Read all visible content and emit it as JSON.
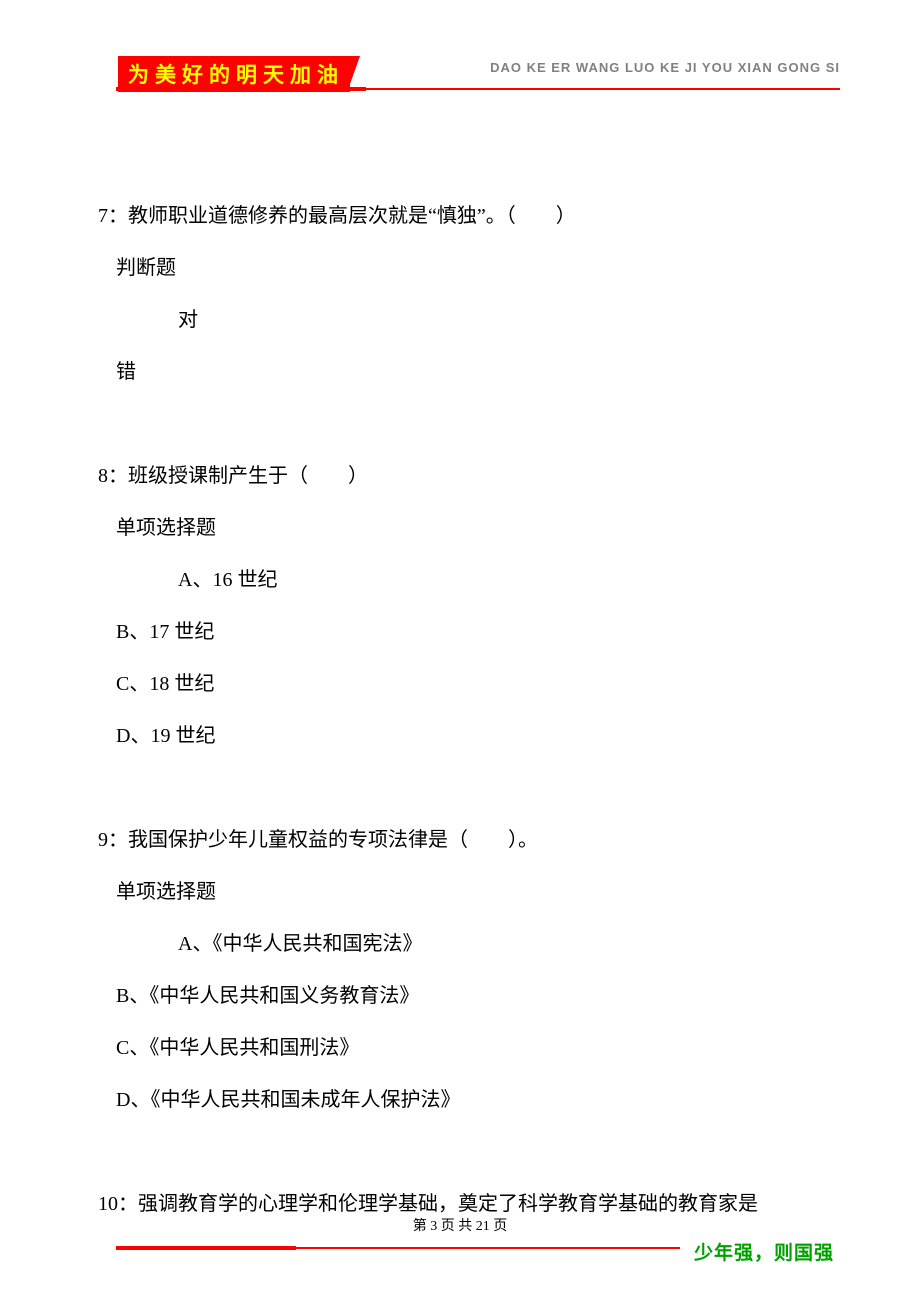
{
  "header": {
    "banner_text": "为美好的明天加油",
    "pinyin": "DAO KE ER WANG LUO KE JI YOU XIAN GONG SI",
    "line_color": "#ff0000",
    "banner_bg": "#ff0000",
    "banner_fg": "#ffff00"
  },
  "q7": {
    "text": "7：教师职业道德修养的最高层次就是“慎独”。（　　）",
    "type": "判断题",
    "opt_true": "对",
    "opt_false": "错"
  },
  "q8": {
    "text": "8：班级授课制产生于（　　）",
    "type": "单项选择题",
    "a": "A、16 世纪",
    "b": "B、17 世纪",
    "c": "C、18 世纪",
    "d": "D、19 世纪"
  },
  "q9": {
    "text": "9：我国保护少年儿童权益的专项法律是（　　）。",
    "type": "单项选择题",
    "a": "A、《中华人民共和国宪法》",
    "b": "B、《中华人民共和国义务教育法》",
    "c": "C、《中华人民共和国刑法》",
    "d": "D、《中华人民共和国未成年人保护法》"
  },
  "q10": {
    "text": "10：强调教育学的心理学和伦理学基础，奠定了科学教育学基础的教育家是"
  },
  "footer": {
    "page_label_prefix": "第 ",
    "page_current": "3",
    "page_label_mid": " 页 共 ",
    "page_total": "21",
    "page_label_suffix": " 页",
    "slogan": "少年强，则国强",
    "slogan_color": "#00a000"
  }
}
